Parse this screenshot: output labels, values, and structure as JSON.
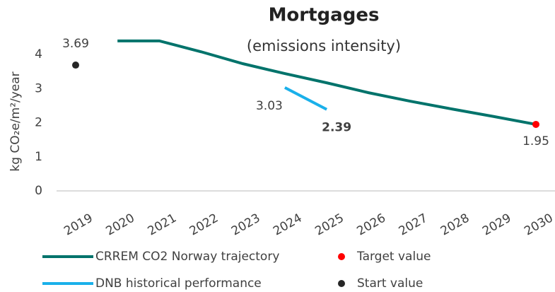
{
  "chart_data": {
    "type": "line",
    "title": "Mortgages",
    "subtitle": "(emissions intensity)",
    "y_label": "kg CO₂e/m²/year",
    "categories": [
      "2019",
      "2020",
      "2021",
      "2022",
      "2023",
      "2024",
      "2025",
      "2026",
      "2027",
      "2028",
      "2029",
      "2030"
    ],
    "series": [
      {
        "name": "CRREM CO2 Norway trajectory",
        "color": "#00736b",
        "style": "line",
        "data_labels": false,
        "values": [
          null,
          4.4,
          4.4,
          4.08,
          3.73,
          3.44,
          3.17,
          2.88,
          2.63,
          2.4,
          2.18,
          1.95
        ]
      },
      {
        "name": "DNB historical performance",
        "color": "#1ab0ea",
        "style": "line",
        "data_labels": true,
        "values": [
          null,
          null,
          null,
          null,
          null,
          3.03,
          2.39,
          null,
          null,
          null,
          null,
          null
        ]
      },
      {
        "name": "Target value",
        "color": "#ff0000",
        "style": "marker",
        "data_labels": true,
        "values": [
          null,
          null,
          null,
          null,
          null,
          null,
          null,
          null,
          null,
          null,
          null,
          1.95
        ]
      },
      {
        "name": "Start value",
        "color": "#262626",
        "style": "marker",
        "data_labels": true,
        "values": [
          3.69,
          null,
          null,
          null,
          null,
          null,
          null,
          null,
          null,
          null,
          null,
          null
        ]
      }
    ],
    "ylim": [
      0,
      4.5
    ],
    "yticks": [
      0,
      1,
      2,
      3,
      4
    ],
    "grid": false
  }
}
